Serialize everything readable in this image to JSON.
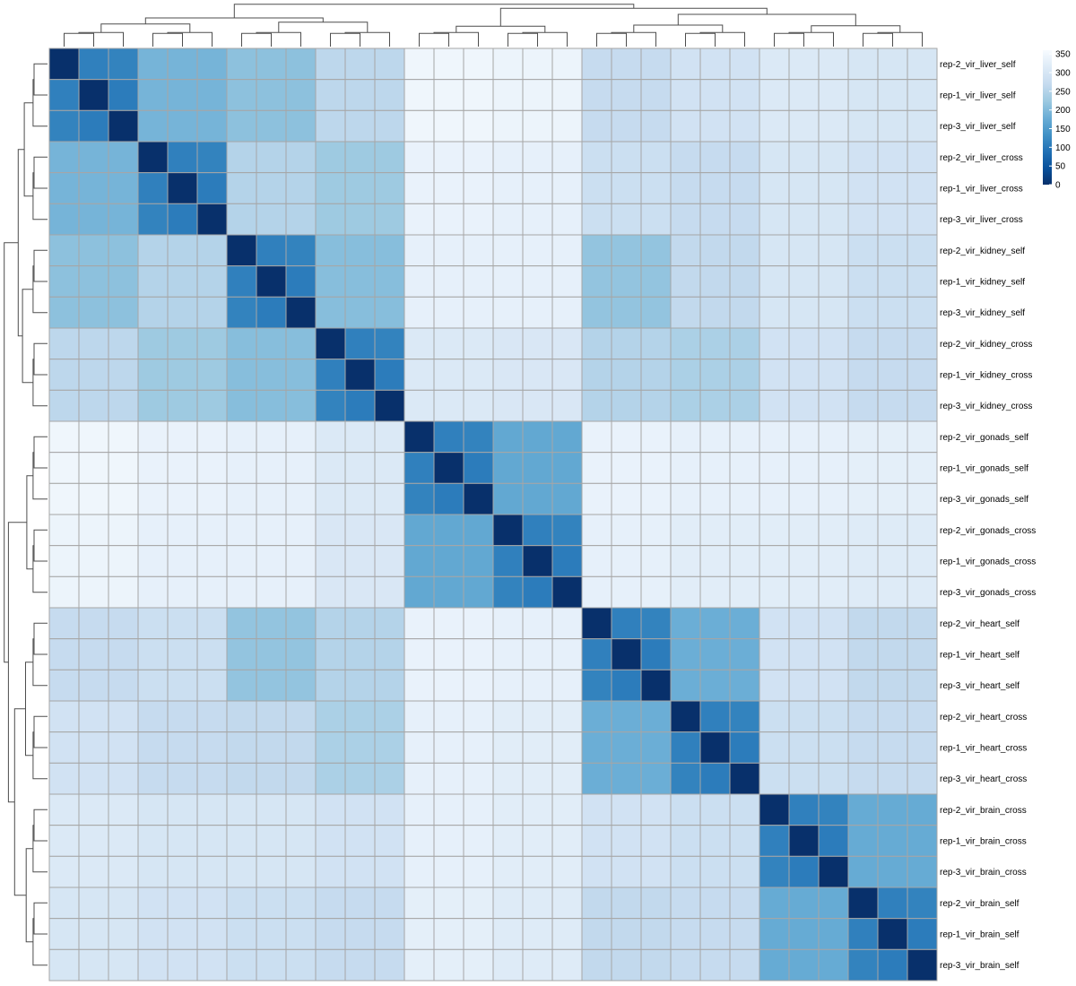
{
  "chart_data": {
    "type": "heatmap",
    "title": "",
    "xlabel": "",
    "ylabel": "",
    "labels": [
      "rep-2_vir_liver_self",
      "rep-1_vir_liver_self",
      "rep-3_vir_liver_self",
      "rep-2_vir_liver_cross",
      "rep-1_vir_liver_cross",
      "rep-3_vir_liver_cross",
      "rep-2_vir_kidney_self",
      "rep-1_vir_kidney_self",
      "rep-3_vir_kidney_self",
      "rep-2_vir_kidney_cross",
      "rep-1_vir_kidney_cross",
      "rep-3_vir_kidney_cross",
      "rep-2_vir_gonads_self",
      "rep-1_vir_gonads_self",
      "rep-3_vir_gonads_self",
      "rep-2_vir_gonads_cross",
      "rep-1_vir_gonads_cross",
      "rep-3_vir_gonads_cross",
      "rep-2_vir_heart_self",
      "rep-1_vir_heart_self",
      "rep-3_vir_heart_self",
      "rep-2_vir_heart_cross",
      "rep-1_vir_heart_cross",
      "rep-3_vir_heart_cross",
      "rep-2_vir_brain_cross",
      "rep-1_vir_brain_cross",
      "rep-3_vir_brain_cross",
      "rep-2_vir_brain_self",
      "rep-1_vir_brain_self",
      "rep-3_vir_brain_self"
    ],
    "groups": [
      "liver_self",
      "liver_cross",
      "kidney_self",
      "kidney_cross",
      "gonads_self",
      "gonads_cross",
      "heart_self",
      "heart_cross",
      "brain_cross",
      "brain_self"
    ],
    "group_distance_matrix": [
      [
        0,
        190,
        210,
        260,
        345,
        340,
        270,
        290,
        310,
        300
      ],
      [
        190,
        0,
        250,
        225,
        335,
        330,
        280,
        270,
        300,
        290
      ],
      [
        210,
        250,
        0,
        205,
        330,
        330,
        215,
        265,
        300,
        280
      ],
      [
        260,
        225,
        205,
        0,
        310,
        305,
        250,
        240,
        290,
        270
      ],
      [
        345,
        335,
        330,
        310,
        0,
        170,
        335,
        330,
        330,
        325
      ],
      [
        340,
        330,
        330,
        305,
        170,
        0,
        330,
        320,
        320,
        315
      ],
      [
        270,
        280,
        215,
        250,
        335,
        330,
        0,
        180,
        290,
        265
      ],
      [
        290,
        270,
        265,
        240,
        330,
        320,
        180,
        0,
        280,
        270
      ],
      [
        310,
        300,
        300,
        290,
        330,
        320,
        290,
        280,
        0,
        175
      ],
      [
        300,
        290,
        280,
        270,
        325,
        315,
        265,
        270,
        175,
        0
      ]
    ],
    "within_replicate_values": [
      [
        0,
        110,
        115
      ],
      [
        110,
        0,
        105
      ],
      [
        115,
        105,
        0
      ]
    ],
    "color_scale": {
      "min": 0,
      "max": 360,
      "ticks": [
        0,
        50,
        100,
        150,
        200,
        250,
        300,
        350
      ],
      "stops": [
        "#08306b",
        "#08519c",
        "#2171b5",
        "#4292c6",
        "#6baed6",
        "#9ecae1",
        "#c6dbef",
        "#deebf7",
        "#f7fbff"
      ]
    },
    "dendrogram": {
      "row": true,
      "column": true,
      "group_order": [
        "liver_self",
        "liver_cross",
        "kidney_self",
        "kidney_cross",
        "gonads_self",
        "gonads_cross",
        "heart_self",
        "heart_cross",
        "brain_cross",
        "brain_self"
      ],
      "merges": [
        {
          "a": "liver_self",
          "b": "liver_cross",
          "height": 190
        },
        {
          "a": "kidney_self",
          "b": "kidney_cross",
          "height": 205
        },
        {
          "a": "liver",
          "b": "kidney",
          "height": 240
        },
        {
          "a": "gonads_self",
          "b": "gonads_cross",
          "height": 170
        },
        {
          "a": "heart_self",
          "b": "heart_cross",
          "height": 180
        },
        {
          "a": "brain_cross",
          "b": "brain_self",
          "height": 175
        },
        {
          "a": "heart",
          "b": "brain",
          "height": 270
        },
        {
          "a": "gonads",
          "b": "heart_brain",
          "height": 320
        },
        {
          "a": "liver_kidney",
          "b": "gonads_heart_brain",
          "height": 355
        }
      ]
    },
    "grid": true,
    "legend": "top-right"
  }
}
